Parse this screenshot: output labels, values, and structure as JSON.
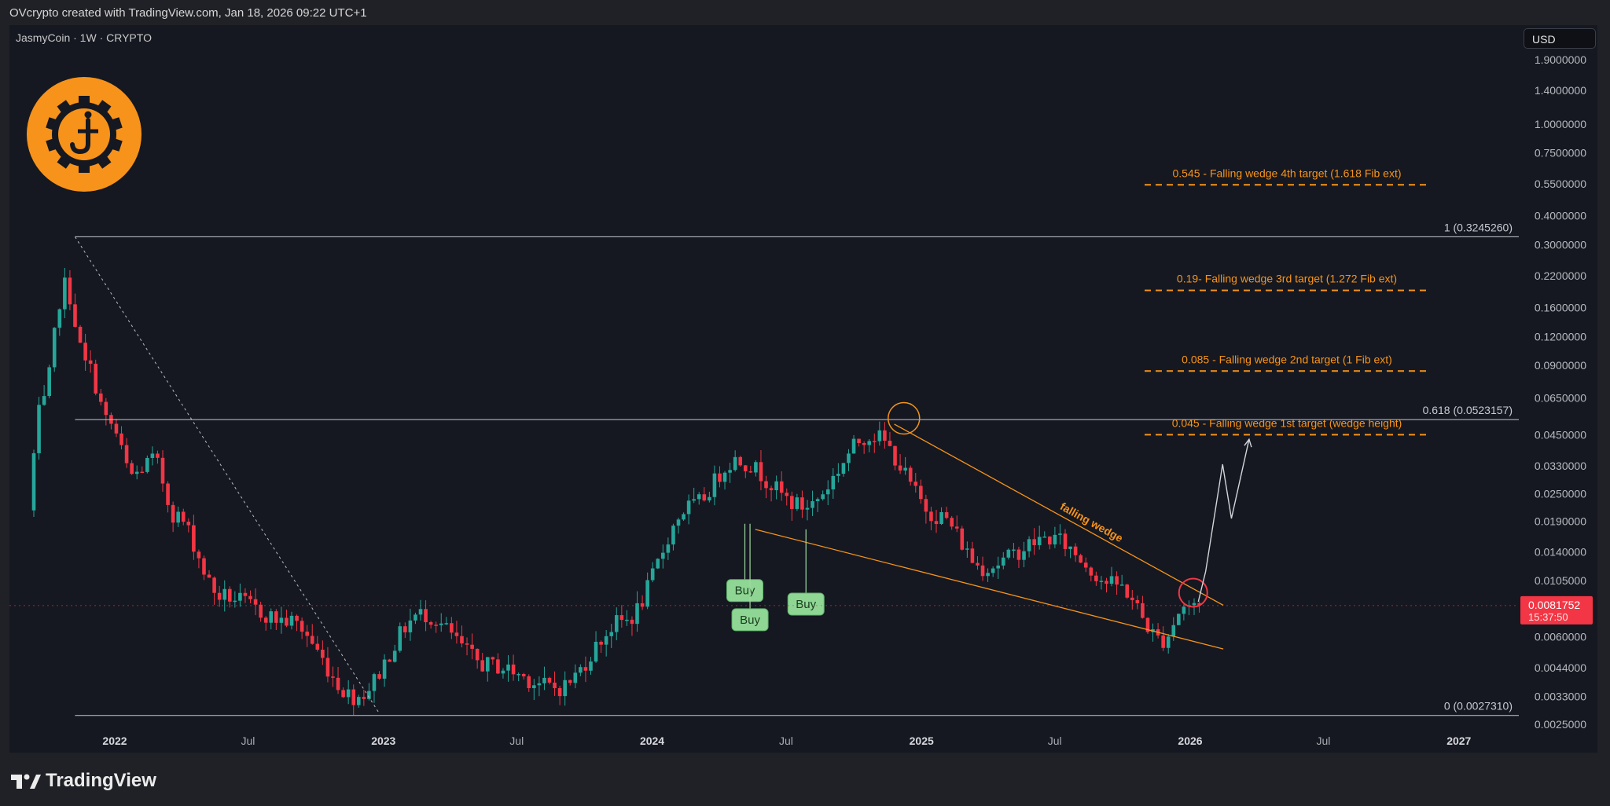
{
  "header": {
    "attribution": "OVcrypto created with TradingView.com, Jan 18, 2026 09:22 UTC+1"
  },
  "symbol": {
    "label": "JasmyCoin · 1W · CRYPTO"
  },
  "currency_button": {
    "label": "USD"
  },
  "brand": {
    "name": "TradingView"
  },
  "price_tag": {
    "value": "0.0081752",
    "countdown": "15:37:50",
    "color": "#f23645"
  },
  "colors": {
    "up": "#26a69a",
    "down": "#f23645",
    "accent": "#f7931a",
    "background": "#151821"
  },
  "chart_data": {
    "type": "candlestick",
    "y_scale": "log",
    "y_ticks": [
      "1.9000000",
      "1.4000000",
      "1.0000000",
      "0.7500000",
      "0.5500000",
      "0.4000000",
      "0.3000000",
      "0.2200000",
      "0.1600000",
      "0.1200000",
      "0.0900000",
      "0.0650000",
      "0.0450000",
      "0.0330000",
      "0.0250000",
      "0.0190000",
      "0.0140000",
      "0.0105000",
      "0.0060000",
      "0.0044000",
      "0.0033000",
      "0.0025000"
    ],
    "x_ticks": [
      "2022",
      "Jul",
      "2023",
      "Jul",
      "2024",
      "Jul",
      "2025",
      "Jul",
      "2026",
      "Jul",
      "2027"
    ],
    "fib_levels": [
      {
        "label": "1 (0.3245260)",
        "value": 0.324526
      },
      {
        "label": "0.618 (0.0523157)",
        "value": 0.0523157
      },
      {
        "label": "0 (0.0027310)",
        "value": 0.002731
      }
    ],
    "targets": [
      {
        "label": "0.545 - Falling wedge 4th target (1.618 Fib ext)",
        "value": 0.545
      },
      {
        "label": "0.19- Falling wedge 3rd target (1.272 Fib ext)",
        "value": 0.19
      },
      {
        "label": "0.085 - Falling wedge 2nd target (1 Fib ext)",
        "value": 0.085
      },
      {
        "label": "0.045 - Falling wedge 1st target (wedge height)",
        "value": 0.045
      }
    ],
    "pattern_label": "falling wedge",
    "signals": [
      "Buy",
      "Buy",
      "Buy"
    ],
    "series": [
      {
        "date": "2021-09",
        "close": 0.012
      },
      {
        "date": "2021-10",
        "close": 0.06
      },
      {
        "date": "2021-11",
        "close": 0.2
      },
      {
        "date": "2021-12",
        "close": 0.09
      },
      {
        "date": "2022-01",
        "close": 0.05
      },
      {
        "date": "2022-02",
        "close": 0.03
      },
      {
        "date": "2022-03",
        "close": 0.035
      },
      {
        "date": "2022-04",
        "close": 0.02
      },
      {
        "date": "2022-06",
        "close": 0.009
      },
      {
        "date": "2022-09",
        "close": 0.007
      },
      {
        "date": "2022-12",
        "close": 0.0033
      },
      {
        "date": "2023-03",
        "close": 0.0075
      },
      {
        "date": "2023-06",
        "close": 0.0045
      },
      {
        "date": "2023-09",
        "close": 0.0036
      },
      {
        "date": "2023-12",
        "close": 0.007
      },
      {
        "date": "2024-03",
        "close": 0.022
      },
      {
        "date": "2024-05",
        "close": 0.035
      },
      {
        "date": "2024-08",
        "close": 0.022
      },
      {
        "date": "2024-11",
        "close": 0.045
      },
      {
        "date": "2025-02",
        "close": 0.02
      },
      {
        "date": "2025-04",
        "close": 0.012
      },
      {
        "date": "2025-07",
        "close": 0.016
      },
      {
        "date": "2025-10",
        "close": 0.01
      },
      {
        "date": "2025-12",
        "close": 0.0058
      },
      {
        "date": "2026-01",
        "close": 0.0081752
      }
    ]
  }
}
